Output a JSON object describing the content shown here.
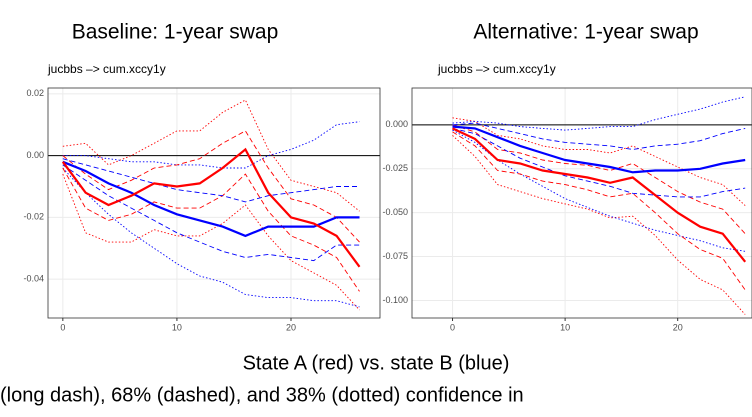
{
  "chart_data": [
    {
      "type": "line",
      "title": "Baseline:  1-year swap",
      "subtitle": "jucbbs –> cum.xccy1y",
      "x": [
        0,
        2,
        4,
        6,
        8,
        10,
        12,
        14,
        16,
        18,
        20,
        22,
        24,
        26
      ],
      "xlim": [
        -1.3,
        27.8
      ],
      "xticks": [
        0,
        10,
        20
      ],
      "ylim": [
        -0.0526,
        0.0219
      ],
      "yticks": [
        0.02,
        {
          "value": 0,
          "label": "0.00"
        },
        -0.02,
        -0.04
      ],
      "grid": true,
      "zero_line": true,
      "series": [
        {
          "color": "#ff0000",
          "dash": "dotted",
          "values": [
            0.003,
            0.004,
            -0.003,
            0.0,
            0.004,
            0.008,
            0.008,
            0.014,
            0.018,
            0.002,
            -0.008,
            -0.01,
            -0.012,
            -0.018
          ]
        },
        {
          "color": "#ff0000",
          "dash": "dotted",
          "values": [
            -0.006,
            -0.025,
            -0.028,
            -0.028,
            -0.024,
            -0.026,
            -0.026,
            -0.022,
            -0.016,
            -0.026,
            -0.034,
            -0.038,
            -0.042,
            -0.05
          ]
        },
        {
          "color": "#0000ff",
          "dash": "dotted",
          "values": [
            0.0,
            0.0,
            -0.001,
            -0.002,
            -0.002,
            -0.003,
            -0.003,
            -0.004,
            -0.004,
            0.0,
            0.002,
            0.005,
            0.01,
            0.011
          ]
        },
        {
          "color": "#0000ff",
          "dash": "dotted",
          "values": [
            -0.004,
            -0.012,
            -0.019,
            -0.025,
            -0.03,
            -0.035,
            -0.039,
            -0.041,
            -0.045,
            -0.046,
            -0.046,
            -0.047,
            -0.047,
            -0.049
          ]
        },
        {
          "color": "#ff0000",
          "dash": "dashed",
          "values": [
            0.0,
            -0.006,
            -0.011,
            -0.008,
            -0.004,
            -0.003,
            -0.001,
            0.004,
            0.008,
            -0.004,
            -0.014,
            -0.016,
            -0.02,
            -0.028
          ]
        },
        {
          "color": "#ff0000",
          "dash": "dashed",
          "values": [
            -0.004,
            -0.017,
            -0.021,
            -0.019,
            -0.015,
            -0.017,
            -0.017,
            -0.013,
            -0.006,
            -0.018,
            -0.026,
            -0.029,
            -0.033,
            -0.044
          ]
        },
        {
          "color": "#0000ff",
          "dash": "dashed",
          "values": [
            -0.001,
            -0.003,
            -0.005,
            -0.007,
            -0.009,
            -0.011,
            -0.012,
            -0.013,
            -0.015,
            -0.013,
            -0.012,
            -0.011,
            -0.01,
            -0.01
          ]
        },
        {
          "color": "#0000ff",
          "dash": "dashed",
          "values": [
            -0.003,
            -0.008,
            -0.013,
            -0.017,
            -0.021,
            -0.025,
            -0.028,
            -0.031,
            -0.033,
            -0.032,
            -0.033,
            -0.034,
            -0.029,
            -0.029
          ]
        },
        {
          "color": "#0000ff",
          "dash": "solid",
          "values": [
            -0.002,
            -0.005,
            -0.009,
            -0.012,
            -0.016,
            -0.019,
            -0.021,
            -0.023,
            -0.026,
            -0.023,
            -0.023,
            -0.023,
            -0.02,
            -0.02
          ]
        },
        {
          "color": "#ff0000",
          "dash": "solid",
          "values": [
            -0.002,
            -0.012,
            -0.016,
            -0.013,
            -0.009,
            -0.01,
            -0.009,
            -0.004,
            0.002,
            -0.012,
            -0.02,
            -0.022,
            -0.026,
            -0.036
          ]
        }
      ]
    },
    {
      "type": "line",
      "title": "Alternative:  1-year swap",
      "subtitle": "jucbbs –> cum.xccy1y",
      "x": [
        0,
        2,
        4,
        6,
        8,
        10,
        12,
        14,
        16,
        18,
        20,
        22,
        24,
        26
      ],
      "xlim": [
        -3.6,
        26.6
      ],
      "xticks": [
        0,
        10,
        20
      ],
      "ylim": [
        -0.11,
        0.021
      ],
      "yticks": [
        {
          "value": 0,
          "label": "0.000"
        },
        -0.025,
        {
          "value": -0.05,
          "label": "-0.050"
        },
        {
          "value": -0.075,
          "label": "-0.075"
        },
        {
          "value": -0.1,
          "label": "-0.100"
        }
      ],
      "grid": true,
      "zero_line": true,
      "series": [
        {
          "color": "#ff0000",
          "dash": "dotted",
          "values": [
            0.004,
            0.002,
            -0.006,
            -0.008,
            -0.012,
            -0.014,
            -0.014,
            -0.016,
            -0.012,
            -0.018,
            -0.024,
            -0.03,
            -0.034,
            -0.046
          ]
        },
        {
          "color": "#ff0000",
          "dash": "dotted",
          "values": [
            -0.006,
            -0.018,
            -0.034,
            -0.038,
            -0.042,
            -0.045,
            -0.048,
            -0.053,
            -0.052,
            -0.063,
            -0.077,
            -0.088,
            -0.094,
            -0.108
          ]
        },
        {
          "color": "#0000ff",
          "dash": "dotted",
          "values": [
            0.001,
            0.002,
            0.001,
            -0.001,
            -0.002,
            -0.003,
            -0.002,
            -0.001,
            -0.001,
            0.003,
            0.006,
            0.009,
            0.013,
            0.016
          ]
        },
        {
          "color": "#0000ff",
          "dash": "dotted",
          "values": [
            -0.003,
            -0.01,
            -0.02,
            -0.028,
            -0.035,
            -0.042,
            -0.047,
            -0.052,
            -0.056,
            -0.06,
            -0.063,
            -0.066,
            -0.07,
            -0.072
          ]
        },
        {
          "color": "#ff0000",
          "dash": "dashed",
          "values": [
            0.0,
            -0.004,
            -0.014,
            -0.016,
            -0.02,
            -0.022,
            -0.023,
            -0.026,
            -0.022,
            -0.03,
            -0.038,
            -0.044,
            -0.048,
            -0.062
          ]
        },
        {
          "color": "#ff0000",
          "dash": "dashed",
          "values": [
            -0.004,
            -0.012,
            -0.026,
            -0.028,
            -0.032,
            -0.034,
            -0.037,
            -0.041,
            -0.039,
            -0.05,
            -0.062,
            -0.071,
            -0.076,
            -0.094
          ]
        },
        {
          "color": "#0000ff",
          "dash": "dashed",
          "values": [
            0.0,
            0.001,
            -0.002,
            -0.005,
            -0.008,
            -0.01,
            -0.011,
            -0.012,
            -0.014,
            -0.012,
            -0.011,
            -0.009,
            -0.005,
            -0.002
          ]
        },
        {
          "color": "#0000ff",
          "dash": "dashed",
          "values": [
            -0.002,
            -0.005,
            -0.012,
            -0.019,
            -0.024,
            -0.029,
            -0.032,
            -0.035,
            -0.039,
            -0.04,
            -0.041,
            -0.041,
            -0.038,
            -0.036
          ]
        },
        {
          "color": "#0000ff",
          "dash": "solid",
          "values": [
            -0.001,
            -0.002,
            -0.007,
            -0.012,
            -0.016,
            -0.02,
            -0.022,
            -0.024,
            -0.027,
            -0.026,
            -0.026,
            -0.025,
            -0.022,
            -0.02
          ]
        },
        {
          "color": "#ff0000",
          "dash": "solid",
          "values": [
            -0.002,
            -0.008,
            -0.02,
            -0.022,
            -0.026,
            -0.028,
            -0.03,
            -0.033,
            -0.03,
            -0.04,
            -0.05,
            -0.058,
            -0.062,
            -0.078
          ]
        }
      ]
    }
  ],
  "caption": [
    "State A (red) vs. state B (blue)",
    "(long dash), 68% (dashed), and 38% (dotted) confidence in"
  ]
}
